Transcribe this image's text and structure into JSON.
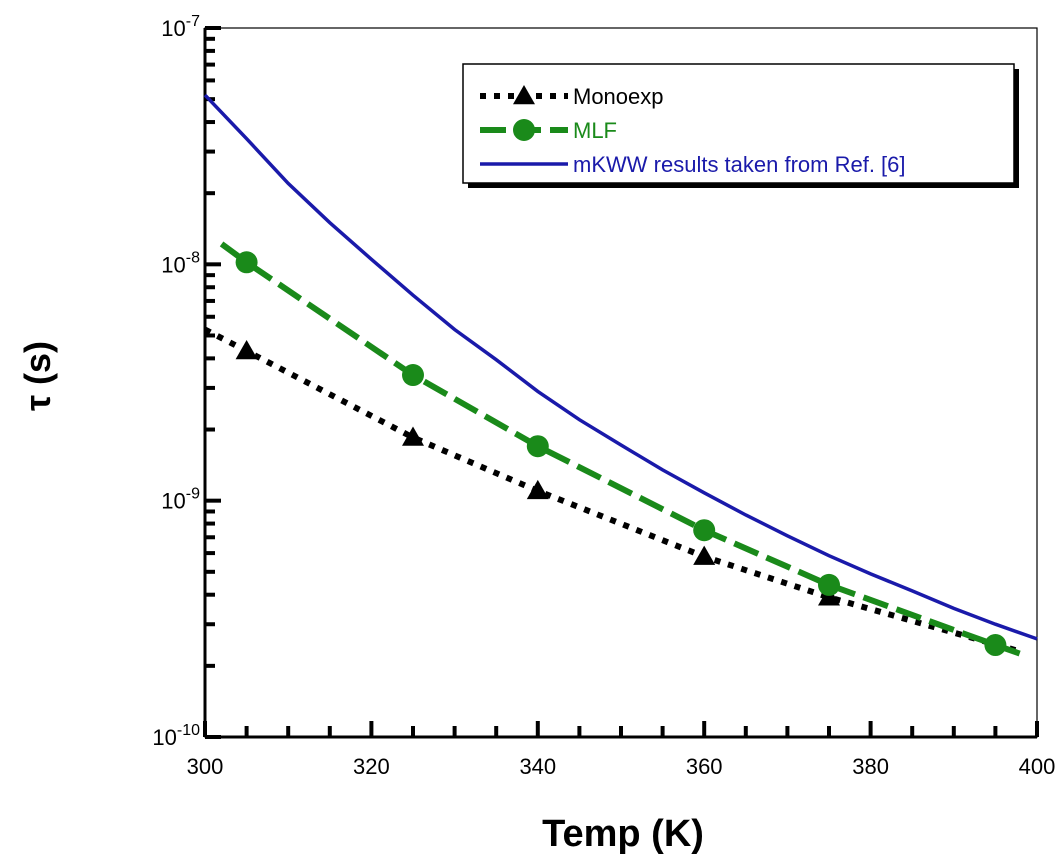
{
  "chart_data": {
    "type": "line",
    "xlabel": "Temp (K)",
    "ylabel": "τ (s)",
    "xlim": [
      300,
      400
    ],
    "ylim": [
      1e-10,
      1e-07
    ],
    "yscale": "log",
    "x_ticks": [
      300,
      320,
      340,
      360,
      380,
      400
    ],
    "x_tick_labels": [
      "300",
      "320",
      "340",
      "360",
      "380",
      "400"
    ],
    "y_ticks": [
      {
        "value": 1e-10,
        "base": "10",
        "exp": "-10"
      },
      {
        "value": 1e-09,
        "base": "10",
        "exp": "-9"
      },
      {
        "value": 1e-08,
        "base": "10",
        "exp": "-8"
      },
      {
        "value": 1e-07,
        "base": "10",
        "exp": "-7"
      }
    ],
    "legend_position": "top-right",
    "grid": false,
    "series": [
      {
        "name": "Monoexp",
        "color": "#000000",
        "style": "dotted",
        "marker": "triangle",
        "x": [
          305,
          325,
          340,
          360,
          375
        ],
        "y": [
          4.3e-09,
          1.85e-09,
          1.1e-09,
          5.8e-10,
          3.9e-10
        ],
        "line_x": [
          300,
          305,
          325,
          340,
          360,
          375,
          398
        ],
        "line_y": [
          5.3e-09,
          4.3e-09,
          1.85e-09,
          1.1e-09,
          5.8e-10,
          3.9e-10,
          2.3e-10
        ]
      },
      {
        "name": "MLF",
        "color": "#1a8a1a",
        "style": "dashed",
        "marker": "circle",
        "x": [
          305,
          325,
          340,
          360,
          375,
          395
        ],
        "y": [
          1.02e-08,
          3.4e-09,
          1.7e-09,
          7.5e-10,
          4.4e-10,
          2.45e-10
        ],
        "line_x": [
          302,
          305,
          325,
          340,
          360,
          375,
          395,
          398
        ],
        "line_y": [
          1.22e-08,
          1.02e-08,
          3.4e-09,
          1.7e-09,
          7.5e-10,
          4.4e-10,
          2.45e-10,
          2.25e-10
        ]
      },
      {
        "name": "mKWW results taken from Ref. [6]",
        "color": "#1a1aaa",
        "style": "solid",
        "marker": "none",
        "x": [
          300,
          305,
          310,
          315,
          320,
          325,
          330,
          335,
          340,
          345,
          350,
          355,
          360,
          365,
          370,
          375,
          380,
          385,
          390,
          395,
          400
        ],
        "y": [
          5.2e-08,
          3.4e-08,
          2.2e-08,
          1.5e-08,
          1.05e-08,
          7.4e-09,
          5.3e-09,
          3.95e-09,
          2.9e-09,
          2.2e-09,
          1.72e-09,
          1.35e-09,
          1.08e-09,
          8.7e-10,
          7.1e-10,
          5.85e-10,
          4.9e-10,
          4.15e-10,
          3.5e-10,
          3e-10,
          2.6e-10
        ]
      }
    ]
  }
}
